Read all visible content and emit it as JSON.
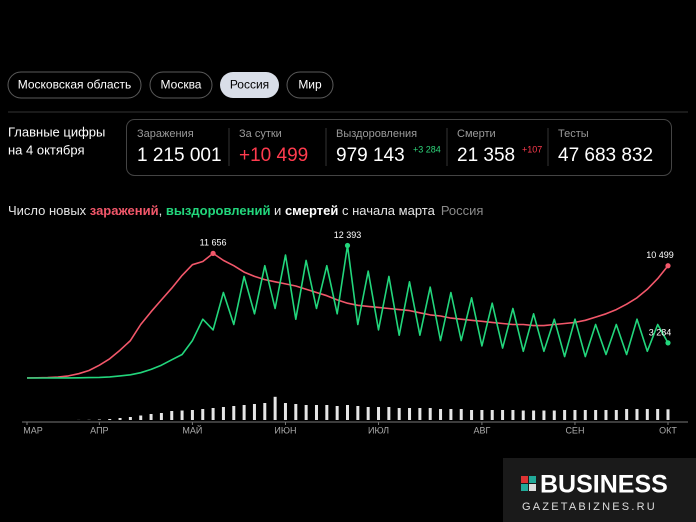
{
  "tabs": [
    "Московская область",
    "Москва",
    "Россия",
    "Мир"
  ],
  "summary": {
    "heading": [
      "Главные цифры",
      "на 4 октября"
    ],
    "stats": [
      {
        "label": "Заражения",
        "value": "1 215 001"
      },
      {
        "label": "За сутки",
        "value": "+10 499"
      },
      {
        "label": "Выздоровления",
        "value": "979 143",
        "delta": "+3 284"
      },
      {
        "label": "Смерти",
        "value": "21 358",
        "delta": "+107"
      },
      {
        "label": "Тесты",
        "value": "47 683 832"
      }
    ]
  },
  "chart_data": {
    "type": "line",
    "title_parts": [
      "Число новых ",
      ", ",
      " и ",
      " с начала марта"
    ],
    "subtitle": "Россия",
    "categories": [
      "МАР",
      null,
      null,
      null,
      null,
      null,
      null,
      "АПР",
      null,
      null,
      null,
      null,
      null,
      null,
      null,
      null,
      "МАЙ",
      null,
      null,
      null,
      null,
      null,
      null,
      null,
      null,
      "ИЮН",
      null,
      null,
      null,
      null,
      null,
      null,
      null,
      null,
      "ИЮЛ",
      null,
      null,
      null,
      null,
      null,
      null,
      null,
      null,
      null,
      "АВГ",
      null,
      null,
      null,
      null,
      null,
      null,
      null,
      null,
      "СЕН",
      null,
      null,
      null,
      null,
      null,
      null,
      null,
      null,
      "ОКТ"
    ],
    "ylim": [
      0,
      13000
    ],
    "y2lim": [
      0,
      250
    ],
    "series": [
      {
        "name": "заражений",
        "color": "#f2576a",
        "values": [
          5,
          15,
          40,
          80,
          200,
          400,
          700,
          1200,
          1800,
          2600,
          3500,
          5000,
          6200,
          7300,
          8400,
          9600,
          10600,
          10900,
          11656,
          11000,
          10500,
          9900,
          9500,
          9200,
          9000,
          8800,
          8600,
          8300,
          8000,
          7700,
          7300,
          7000,
          6800,
          6700,
          6600,
          6500,
          6400,
          6300,
          6100,
          5900,
          5800,
          5600,
          5500,
          5400,
          5300,
          5200,
          5100,
          5000,
          5000,
          4900,
          4900,
          5000,
          5100,
          5200,
          5400,
          5700,
          6000,
          6400,
          6900,
          7500,
          8300,
          9300,
          10499
        ],
        "value_labels": {
          "18": "11 656",
          "62": "10 499"
        }
      },
      {
        "name": "выздоровлений",
        "color": "#22d67c",
        "values": [
          0,
          0,
          1,
          5,
          10,
          20,
          40,
          60,
          100,
          200,
          300,
          500,
          800,
          1200,
          1700,
          2200,
          3500,
          5500,
          4500,
          8000,
          5000,
          9500,
          6000,
          10500,
          6500,
          11500,
          5500,
          11000,
          6500,
          10500,
          6000,
          12393,
          5000,
          10000,
          4500,
          9500,
          4000,
          9000,
          4000,
          8500,
          3500,
          8000,
          3500,
          7500,
          3000,
          7000,
          2800,
          6500,
          2500,
          6000,
          2500,
          5500,
          2000,
          5500,
          2000,
          5000,
          2200,
          5000,
          2200,
          5500,
          2500,
          5000,
          3284
        ],
        "value_labels": {
          "31": "12 393",
          "62": "3 284"
        }
      },
      {
        "name": "смертей",
        "color": "#e6e6e6",
        "type": "bar",
        "axis": "y2",
        "values": [
          0,
          0,
          0,
          0,
          0,
          1,
          2,
          5,
          10,
          20,
          30,
          45,
          60,
          70,
          90,
          95,
          100,
          110,
          120,
          130,
          140,
          150,
          160,
          170,
          232,
          170,
          160,
          150,
          150,
          150,
          140,
          150,
          140,
          130,
          130,
          130,
          120,
          120,
          120,
          120,
          110,
          110,
          110,
          100,
          100,
          100,
          100,
          100,
          95,
          95,
          95,
          95,
          100,
          100,
          100,
          100,
          100,
          100,
          110,
          110,
          110,
          110,
          107
        ]
      }
    ]
  },
  "watermark": {
    "brand": "BUSINESS",
    "site": "GAZETABIZNES.RU"
  }
}
